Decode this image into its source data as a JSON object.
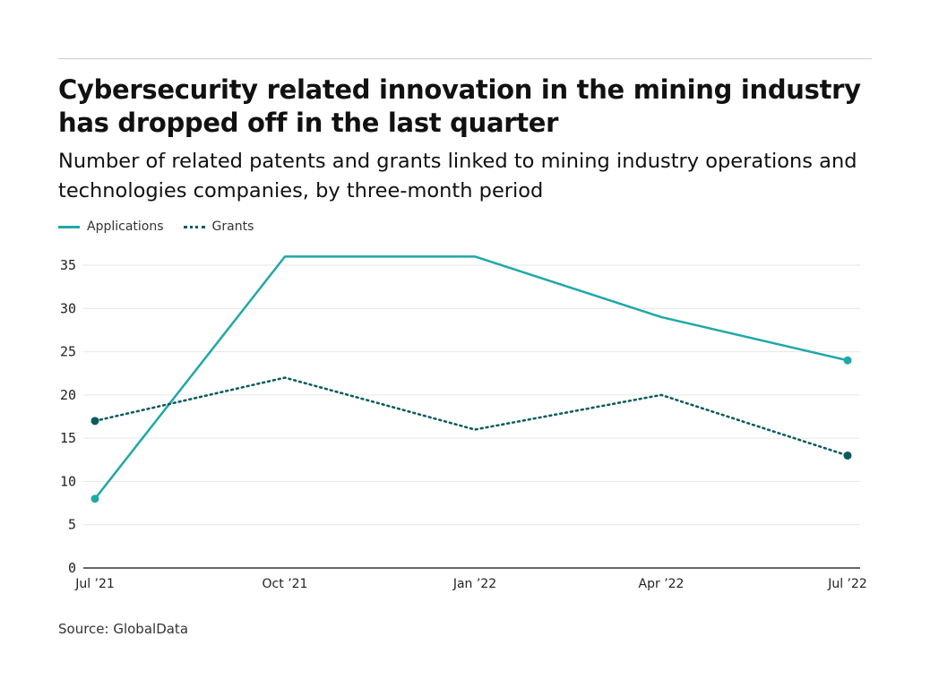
{
  "title": "Cybersecurity related innovation in the mining industry has dropped off in the last quarter",
  "subtitle": "Number of related patents and grants linked to mining industry operations and technologies companies, by three-month period",
  "source": "Source: GlobalData",
  "chart_data": {
    "type": "line",
    "categories": [
      "Jul ’21",
      "Oct ’21",
      "Jan ’22",
      "Apr ’22",
      "Jul ’22"
    ],
    "series": [
      {
        "name": "Applications",
        "values": [
          8,
          36,
          36,
          29,
          24
        ],
        "color": "#1fa8a8",
        "style": "solid"
      },
      {
        "name": "Grants",
        "values": [
          17,
          22,
          16,
          20,
          13
        ],
        "color": "#0b5b5e",
        "style": "dotted"
      }
    ],
    "yticks": [
      0,
      5,
      10,
      15,
      20,
      25,
      30,
      35
    ],
    "ylim": [
      0,
      35
    ],
    "grid": true,
    "legend": "top-left"
  }
}
